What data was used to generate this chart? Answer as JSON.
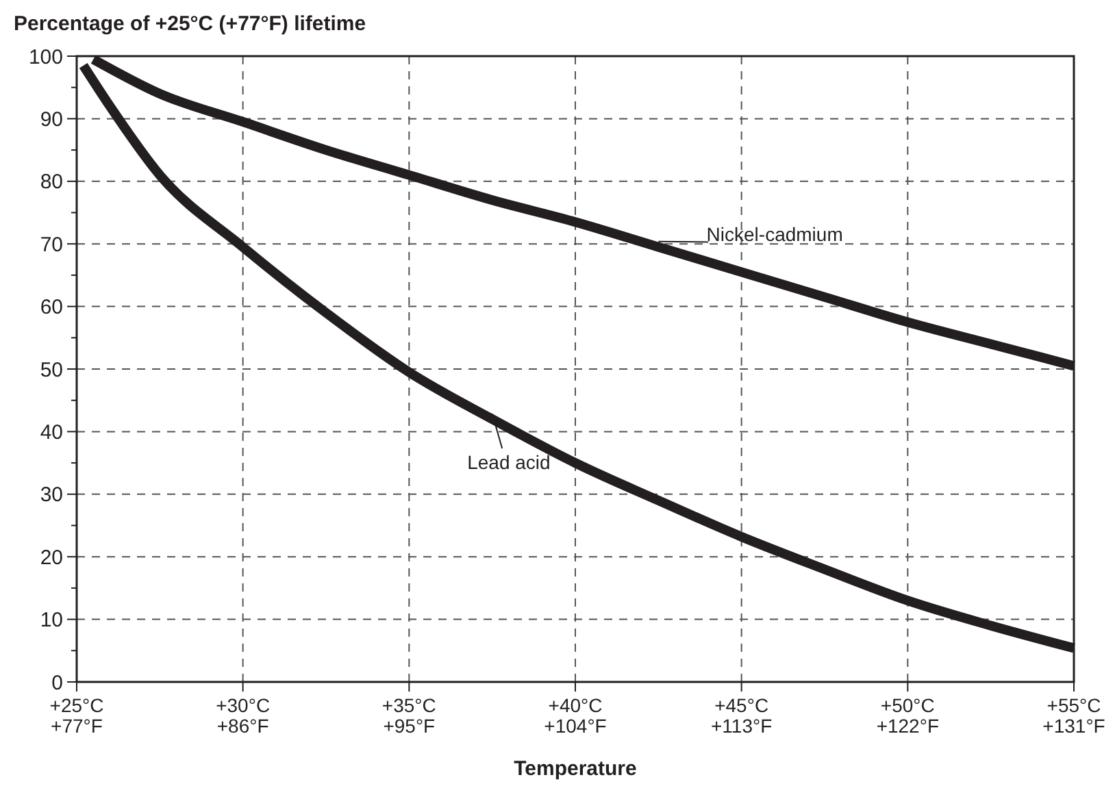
{
  "chart_data": {
    "type": "line",
    "ylabel": "Percentage of +25°C (+77°F) lifetime",
    "xlabel": "Temperature",
    "xlim": [
      25,
      55
    ],
    "ylim": [
      0,
      100
    ],
    "xticks": [
      {
        "value": 25,
        "label": "+25°C"
      },
      {
        "value": 30,
        "label": "+30°C"
      },
      {
        "value": 35,
        "label": "+35°C"
      },
      {
        "value": 40,
        "label": "+40°C"
      },
      {
        "value": 45,
        "label": "+45°C"
      },
      {
        "value": 50,
        "label": "+50°C"
      },
      {
        "value": 55,
        "label": "+55°C"
      }
    ],
    "x2lim": [
      77,
      131
    ],
    "x2ticks": [
      {
        "value": 77,
        "label": "+77°F"
      },
      {
        "value": 86,
        "label": "+86°F"
      },
      {
        "value": 95,
        "label": "+95°F"
      },
      {
        "value": 104,
        "label": "+104°F"
      },
      {
        "value": 113,
        "label": "+113°F"
      },
      {
        "value": 122,
        "label": "+122°F"
      },
      {
        "value": 131,
        "label": "+131°F"
      }
    ],
    "yticks": [
      0,
      {
        "value": 5,
        "label": null
      },
      10,
      {
        "value": 15,
        "label": null
      },
      20,
      {
        "value": 25,
        "label": null
      },
      30,
      {
        "value": 35,
        "label": null
      },
      40,
      {
        "value": 45,
        "label": null
      },
      50,
      {
        "value": 55,
        "label": null
      },
      60,
      {
        "value": 65,
        "label": null
      },
      70,
      {
        "value": 75,
        "label": null
      },
      80,
      {
        "value": 85,
        "label": null
      },
      90,
      {
        "value": 95,
        "label": null
      },
      100
    ],
    "grid": true,
    "line_style": "solid",
    "marker": "none",
    "series": [
      {
        "name": "Nickel-cadmium",
        "color": "#231f20",
        "x": [
          25.5,
          27.5,
          30,
          32.5,
          35,
          37.5,
          40,
          42.5,
          45,
          47.5,
          50,
          52.5,
          55
        ],
        "values": [
          99.5,
          94,
          89.5,
          85,
          81,
          77,
          73.5,
          69.5,
          65.5,
          61.5,
          57.5,
          54,
          50.5
        ]
      },
      {
        "name": "Lead acid",
        "color": "#231f20",
        "x": [
          25.2,
          26,
          27.5,
          30,
          32.5,
          35,
          37.5,
          40,
          42.5,
          45,
          47.5,
          50,
          52.5,
          55
        ],
        "values": [
          98.5,
          92,
          81,
          69.5,
          59,
          49.5,
          42,
          35,
          29,
          23.2,
          18,
          13,
          9,
          5.4
        ]
      }
    ]
  }
}
